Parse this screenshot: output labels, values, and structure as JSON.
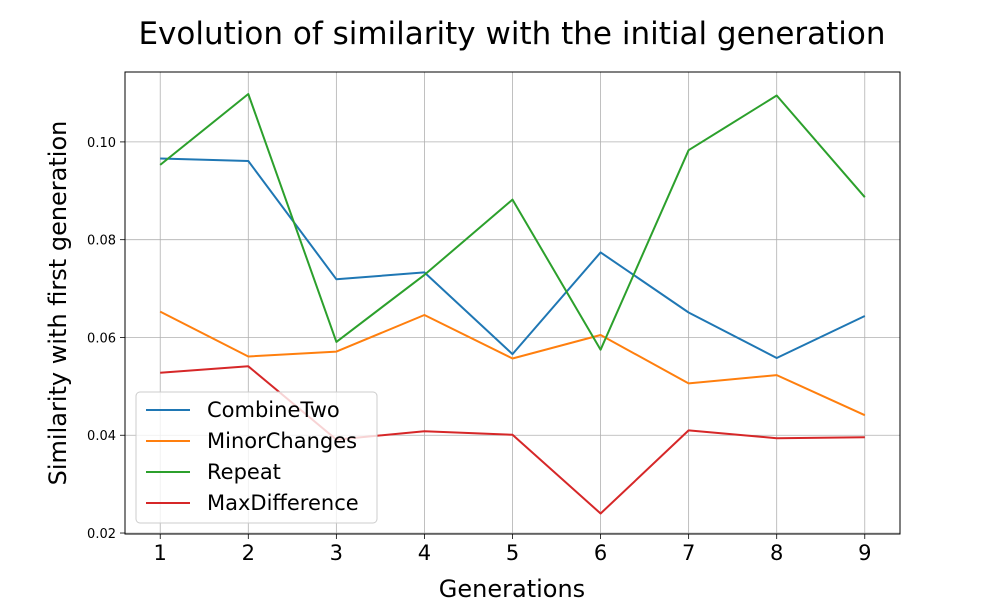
{
  "chart_data": {
    "type": "line",
    "title": "Evolution of similarity with the initial generation",
    "xlabel": "Generations",
    "ylabel": "Similarity with first generation",
    "x": [
      1,
      2,
      3,
      4,
      5,
      6,
      7,
      8,
      9
    ],
    "x_ticks": [
      "1",
      "2",
      "3",
      "4",
      "5",
      "6",
      "7",
      "8",
      "9"
    ],
    "y_ticks": [
      "0.02",
      "0.04",
      "0.06",
      "0.08",
      "0.10"
    ],
    "xlim": [
      0.6,
      9.4
    ],
    "ylim": [
      0.0198,
      0.1143
    ],
    "grid": true,
    "legend_position": "lower-left",
    "series": [
      {
        "name": "CombineTwo",
        "color": "#1f77b4",
        "values": [
          0.0966,
          0.0961,
          0.0719,
          0.0733,
          0.0566,
          0.0774,
          0.0651,
          0.0558,
          0.0644
        ]
      },
      {
        "name": "MinorChanges",
        "color": "#ff7f0e",
        "values": [
          0.0653,
          0.0561,
          0.0571,
          0.0646,
          0.0557,
          0.0605,
          0.0506,
          0.0523,
          0.0441
        ]
      },
      {
        "name": "Repeat",
        "color": "#2ca02c",
        "values": [
          0.0953,
          0.1098,
          0.0591,
          0.0728,
          0.0882,
          0.0575,
          0.0983,
          0.1095,
          0.0887
        ]
      },
      {
        "name": "MaxDifference",
        "color": "#d62728",
        "values": [
          0.0528,
          0.0541,
          0.0391,
          0.0408,
          0.0401,
          0.024,
          0.041,
          0.0394,
          0.0396
        ]
      }
    ]
  }
}
